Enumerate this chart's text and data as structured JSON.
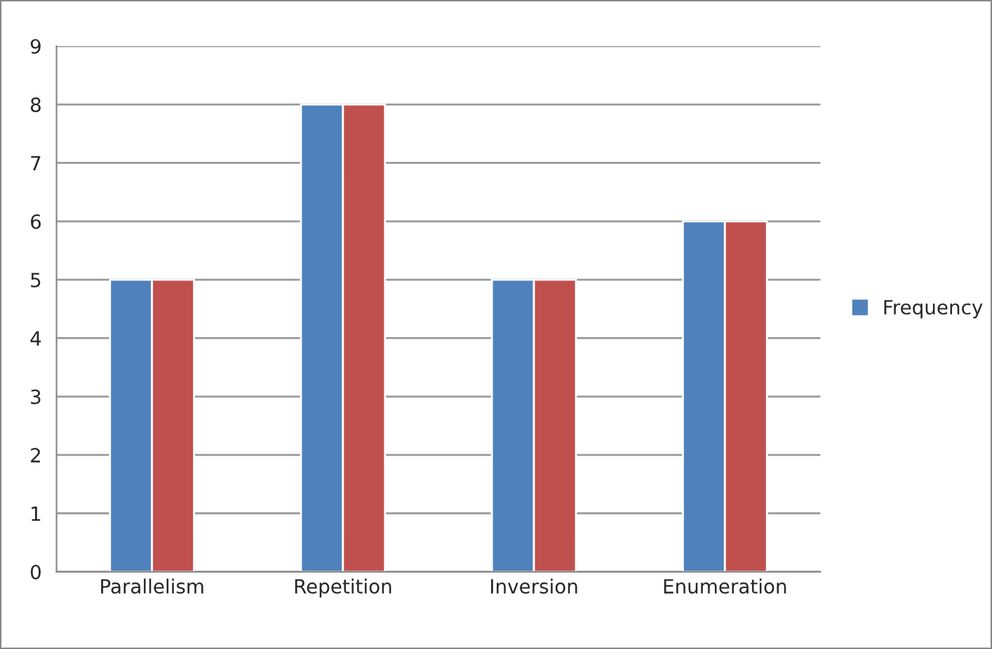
{
  "chart_data": {
    "type": "bar",
    "categories": [
      "Parallelism",
      "Repetition",
      "Inversion",
      "Enumeration"
    ],
    "series": [
      {
        "name": "Frequency",
        "color": "#4f81bd",
        "values": [
          5,
          8,
          5,
          6
        ]
      },
      {
        "color": "#c0504d",
        "values": [
          5,
          8,
          5,
          6
        ]
      }
    ],
    "ylim": [
      0,
      9
    ],
    "yticks": [
      0,
      1,
      2,
      3,
      4,
      5,
      6,
      7,
      8,
      9
    ],
    "grid": "y",
    "legend": "right"
  }
}
